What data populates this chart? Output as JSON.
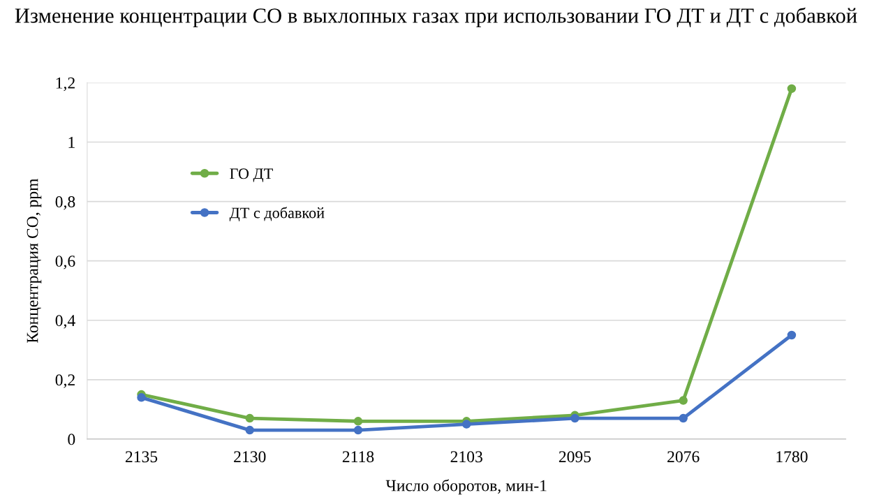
{
  "chart_data": {
    "type": "line",
    "title": "Изменение концентрации CO в выхлопных газах при использовании ГО ДТ и ДТ с добавкой",
    "xlabel": "Число оборотов, мин-1",
    "ylabel": "Концентрация CO, ppm",
    "categories": [
      "2135",
      "2130",
      "2118",
      "2103",
      "2095",
      "2076",
      "1780"
    ],
    "series": [
      {
        "name": "ГО ДТ",
        "color": "#70ad47",
        "values": [
          0.15,
          0.07,
          0.06,
          0.06,
          0.08,
          0.13,
          1.18
        ]
      },
      {
        "name": "ДТ с добавкой",
        "color": "#4472c4",
        "values": [
          0.14,
          0.03,
          0.03,
          0.05,
          0.07,
          0.07,
          0.35
        ]
      }
    ],
    "ylim": [
      0,
      1.2
    ],
    "yticks": [
      0,
      {
        "value": 0.2,
        "label": "0,2"
      },
      {
        "value": 0.4,
        "label": "0,4"
      },
      {
        "value": 0.6,
        "label": "0,6"
      },
      {
        "value": 0.8,
        "label": "0,8"
      },
      1,
      {
        "value": 1.2,
        "label": "1,2"
      }
    ],
    "grid": "y",
    "legend": "top left",
    "marker": "circle",
    "line_style": "solid"
  }
}
